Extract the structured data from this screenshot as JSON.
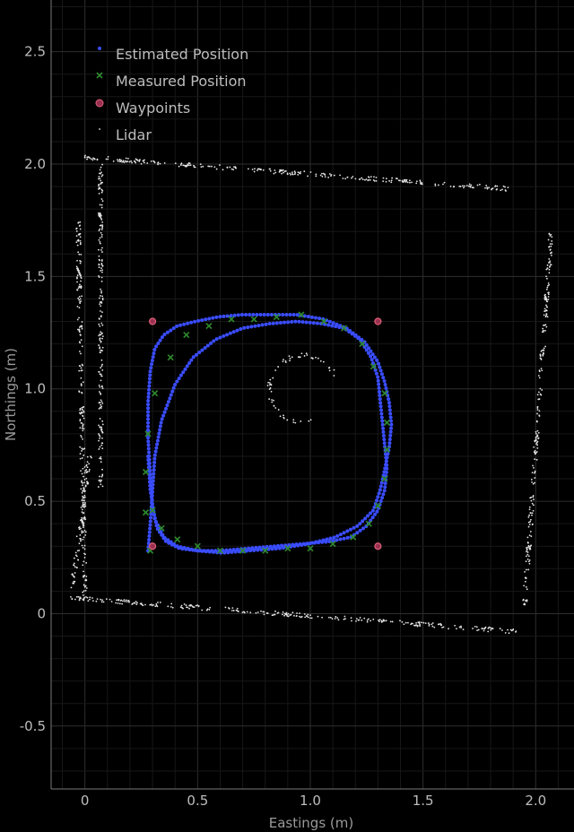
{
  "chart_data": {
    "type": "scatter",
    "title": "",
    "xlabel": "Eastings (m)",
    "ylabel": "Northings (m)",
    "xlim": [
      -0.15,
      2.17
    ],
    "ylim": [
      -0.78,
      2.73
    ],
    "xticks": [
      0,
      0.5,
      1.0,
      1.5,
      2.0
    ],
    "xtick_labels": [
      "0",
      "0.5",
      "1.0",
      "1.5",
      "2.0"
    ],
    "yticks": [
      -0.5,
      0,
      0.5,
      1.0,
      1.5,
      2.0,
      2.5
    ],
    "ytick_labels": [
      "-0.5",
      "0",
      "0.5",
      "1.0",
      "1.5",
      "2.0",
      "2.5"
    ],
    "grid": true,
    "legend_position": "top-left",
    "colors": {
      "background": "#000000",
      "grid_major": "#2e2e2e",
      "grid_minor": "#171717",
      "estimated": "#3a4dff",
      "measured": "#2e8b2e",
      "waypoint": "#e0607a",
      "lidar": "#e6e6e6"
    },
    "series": [
      {
        "name": "Estimated Position",
        "marker": "dot",
        "path": {
          "x": [
            0.28,
            0.29,
            0.3,
            0.31,
            0.34,
            0.4,
            0.48,
            0.58,
            0.7,
            0.82,
            0.94,
            1.05,
            1.15,
            1.22,
            1.27,
            1.3,
            1.31,
            1.32,
            1.33,
            1.34,
            1.33,
            1.3,
            1.25,
            1.18,
            1.08,
            0.96,
            0.84,
            0.72,
            0.6,
            0.5,
            0.42,
            0.36,
            0.32,
            0.3,
            0.29,
            0.28,
            0.28,
            0.29,
            0.31,
            0.35,
            0.41,
            0.49,
            0.59,
            0.7,
            0.82,
            0.94,
            1.06,
            1.16,
            1.24,
            1.3,
            1.33,
            1.35,
            1.36,
            1.35,
            1.33,
            1.31,
            1.28,
            1.21,
            1.11,
            0.99,
            0.86,
            0.73,
            0.61,
            0.5,
            0.41,
            0.35,
            0.31,
            0.29,
            0.28
          ],
          "y": [
            0.28,
            0.4,
            0.55,
            0.7,
            0.86,
            1.02,
            1.14,
            1.22,
            1.27,
            1.29,
            1.3,
            1.29,
            1.27,
            1.22,
            1.14,
            1.05,
            0.95,
            0.85,
            0.75,
            0.65,
            0.55,
            0.46,
            0.39,
            0.34,
            0.32,
            0.31,
            0.3,
            0.29,
            0.28,
            0.28,
            0.29,
            0.32,
            0.38,
            0.48,
            0.62,
            0.78,
            0.94,
            1.08,
            1.18,
            1.24,
            1.28,
            1.3,
            1.32,
            1.33,
            1.33,
            1.33,
            1.31,
            1.27,
            1.21,
            1.12,
            1.03,
            0.94,
            0.84,
            0.74,
            0.64,
            0.55,
            0.46,
            0.39,
            0.34,
            0.31,
            0.29,
            0.28,
            0.27,
            0.28,
            0.3,
            0.34,
            0.42,
            0.55,
            0.7
          ]
        }
      },
      {
        "name": "Measured Position",
        "marker": "x",
        "path": {
          "x": [
            0.29,
            0.27,
            0.27,
            0.28,
            0.31,
            0.38,
            0.45,
            0.55,
            0.65,
            0.75,
            0.85,
            0.96,
            1.06,
            1.15,
            1.23,
            1.28,
            1.33,
            1.34,
            1.34,
            1.33,
            1.3,
            1.26,
            1.19,
            1.1,
            1.0,
            0.9,
            0.8,
            0.7,
            0.6,
            0.5,
            0.41,
            0.34,
            0.3
          ],
          "y": [
            0.28,
            0.45,
            0.63,
            0.8,
            0.98,
            1.14,
            1.24,
            1.28,
            1.31,
            1.31,
            1.32,
            1.33,
            1.3,
            1.27,
            1.2,
            1.1,
            0.98,
            0.85,
            0.73,
            0.6,
            0.48,
            0.4,
            0.34,
            0.31,
            0.29,
            0.29,
            0.28,
            0.28,
            0.28,
            0.3,
            0.33,
            0.38,
            0.46
          ]
        }
      },
      {
        "name": "Waypoints",
        "marker": "circle",
        "x": [
          0.3,
          1.3,
          1.3,
          0.3
        ],
        "y": [
          1.3,
          1.3,
          0.3,
          0.3
        ]
      },
      {
        "name": "Lidar",
        "marker": "point",
        "segments": [
          {
            "x0": 0.0,
            "y0": 2.03,
            "x1": 1.88,
            "y1": 1.89
          },
          {
            "x0": -0.06,
            "y0": 0.07,
            "x1": 1.92,
            "y1": -0.08
          },
          {
            "x0": -0.03,
            "y0": 1.75,
            "x1": 0.0,
            "y1": 0.08
          },
          {
            "x0": 0.07,
            "y0": 2.0,
            "x1": 0.07,
            "y1": 0.55
          },
          {
            "x0": 2.07,
            "y0": 1.7,
            "x1": 1.95,
            "y1": 0.03
          },
          {
            "x0": 0.02,
            "y0": 0.7,
            "x1": -0.06,
            "y1": 0.07
          }
        ],
        "arc": {
          "cx": 0.97,
          "cy": 1.0,
          "r": 0.15,
          "start_deg": 20,
          "end_deg": 290
        }
      }
    ]
  }
}
